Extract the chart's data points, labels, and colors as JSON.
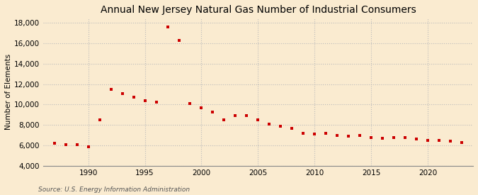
{
  "title": "Annual New Jersey Natural Gas Number of Industrial Consumers",
  "ylabel": "Number of Elements",
  "source": "Source: U.S. Energy Information Administration",
  "background_color": "#faebd0",
  "marker_color": "#cc0000",
  "years": [
    1987,
    1988,
    1989,
    1990,
    1991,
    1992,
    1993,
    1994,
    1995,
    1996,
    1997,
    1998,
    1999,
    2000,
    2001,
    2002,
    2003,
    2004,
    2005,
    2006,
    2007,
    2008,
    2009,
    2010,
    2011,
    2012,
    2013,
    2014,
    2015,
    2016,
    2017,
    2018,
    2019,
    2020,
    2021,
    2022,
    2023
  ],
  "values": [
    6200,
    6100,
    6050,
    5900,
    8500,
    11500,
    11100,
    10700,
    10400,
    10250,
    17600,
    16300,
    10100,
    9700,
    9300,
    8500,
    8900,
    8900,
    8500,
    8100,
    7900,
    7700,
    7200,
    7100,
    7200,
    7000,
    6900,
    7000,
    6800,
    6700,
    6800,
    6800,
    6600,
    6500,
    6500,
    6400,
    6300
  ],
  "ylim": [
    4000,
    18500
  ],
  "yticks": [
    4000,
    6000,
    8000,
    10000,
    12000,
    14000,
    16000,
    18000
  ],
  "xlim": [
    1986,
    2024
  ],
  "xticks": [
    1990,
    1995,
    2000,
    2005,
    2010,
    2015,
    2020
  ],
  "grid_color": "#bbbbbb",
  "title_fontsize": 10,
  "label_fontsize": 7.5,
  "tick_fontsize": 7.5,
  "source_fontsize": 6.5
}
